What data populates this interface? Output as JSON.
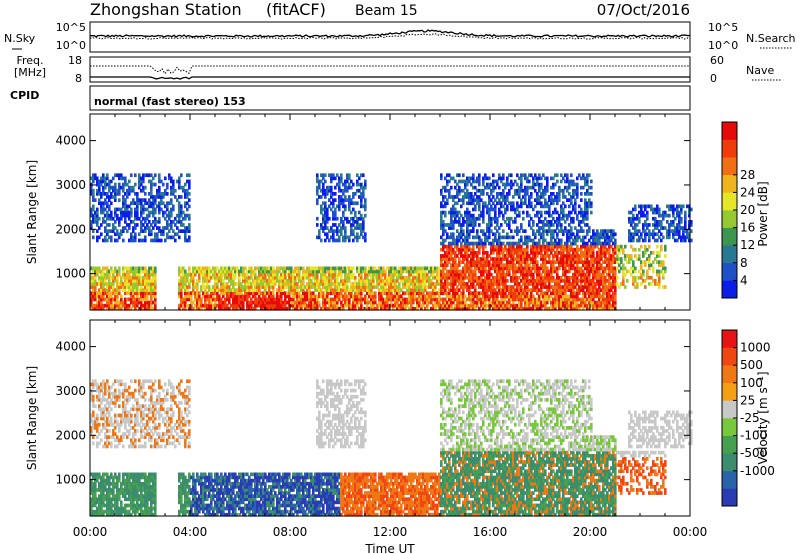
{
  "header": {
    "station": "Zhongshan Station",
    "mode": "(fitACF)",
    "beam": "Beam 15",
    "date": "07/Oct/2016"
  },
  "top_panel": {
    "left_label": "N.Sky",
    "right_label": "N.Search",
    "left_ticks": [
      "10^5",
      "10^0"
    ],
    "right_ticks": [
      "10^5",
      "10^0"
    ]
  },
  "freq_panel": {
    "left_label_1": "Freq.",
    "left_label_2": "[MHz]",
    "right_label": "Nave",
    "left_ticks": [
      "18",
      "8"
    ],
    "right_ticks": [
      "60",
      "0"
    ]
  },
  "cpid": {
    "label": "CPID",
    "text": "normal (fast stereo) 153"
  },
  "chart_data": [
    {
      "type": "heatmap",
      "name": "power-panel",
      "x_ticks": [
        "00:00",
        "04:00",
        "08:00",
        "12:00",
        "16:00",
        "20:00",
        "00:00"
      ],
      "xlim_hours": [
        0,
        24
      ],
      "ylabel": "Slant Range [km]",
      "y_ticks": [
        "1000",
        "2000",
        "3000",
        "4000"
      ],
      "ylim": [
        180,
        4600
      ],
      "colorbar": {
        "label": "Power [dB]",
        "ticks": [
          "4",
          "8",
          "12",
          "16",
          "20",
          "24",
          "28"
        ],
        "range": [
          0,
          32
        ],
        "colors": [
          "#0a1ee6",
          "#1e50c8",
          "#287894",
          "#3c9650",
          "#96c832",
          "#e6e628",
          "#f0b41e",
          "#f06e14",
          "#f03c0a",
          "#e60a0a"
        ]
      }
    },
    {
      "type": "heatmap",
      "name": "velocity-panel",
      "x_ticks": [
        "00:00",
        "04:00",
        "08:00",
        "12:00",
        "16:00",
        "20:00",
        "00:00"
      ],
      "xlim_hours": [
        0,
        24
      ],
      "xlabel": "Time UT",
      "ylabel": "Slant Range [km]",
      "y_ticks": [
        "1000",
        "2000",
        "3000",
        "4000"
      ],
      "ylim": [
        180,
        4600
      ],
      "colorbar": {
        "label": "Velocity [m s⁻¹]",
        "ticks": [
          "1000",
          "500",
          "100",
          "25",
          "-25",
          "-100",
          "-500",
          "-1000"
        ],
        "colors": [
          "#2a3cb4",
          "#2a64a8",
          "#3c8c6e",
          "#46a050",
          "#78c83c",
          "#c8c8c8",
          "#f5a014",
          "#f07814",
          "#f04614",
          "#e61414"
        ]
      }
    }
  ]
}
